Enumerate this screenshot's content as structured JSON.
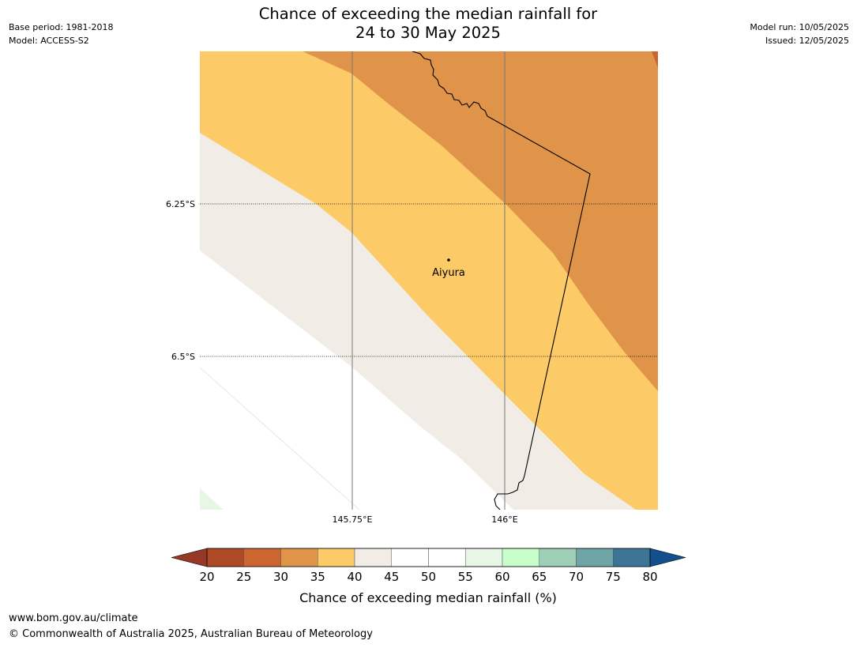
{
  "title": {
    "line1": "Chance of exceeding the median rainfall for",
    "line2": "24 to 30 May 2025"
  },
  "meta_left": {
    "base_period": "Base period: 1981-2018",
    "model": "Model: ACCESS-S2"
  },
  "meta_right": {
    "model_run": "Model run: 10/05/2025",
    "issued": "Issued: 12/05/2025"
  },
  "map": {
    "lat_labels": [
      "6.25°S",
      "6.5°S"
    ],
    "lon_labels": [
      "145.75°E",
      "146°E"
    ],
    "place": {
      "name": "Aiyura"
    },
    "band_colors": {
      "25-30": "#e0944a",
      "30-35": "#fdca68",
      "35-40": "#f1ece6",
      "40-50": "#ffffff",
      "55-60": "#e8f6e6"
    }
  },
  "colorbar": {
    "ticks": [
      "20",
      "25",
      "30",
      "35",
      "40",
      "45",
      "50",
      "55",
      "60",
      "65",
      "70",
      "75",
      "80"
    ],
    "colors": [
      "#b04a26",
      "#cc6530",
      "#e0944a",
      "#fdca68",
      "#f1ece6",
      "#ffffff",
      "#ffffff",
      "#e8f6e6",
      "#c7fdc9",
      "#9ccfb6",
      "#6fa5a6",
      "#3d7597"
    ],
    "low_extend_color": "#973926",
    "high_extend_color": "#134f8d",
    "label": "Chance of exceeding median rainfall (%)"
  },
  "footer": {
    "url": "www.bom.gov.au/climate",
    "copyright": "© Commonwealth of Australia 2025, Australian Bureau of Meteorology"
  }
}
